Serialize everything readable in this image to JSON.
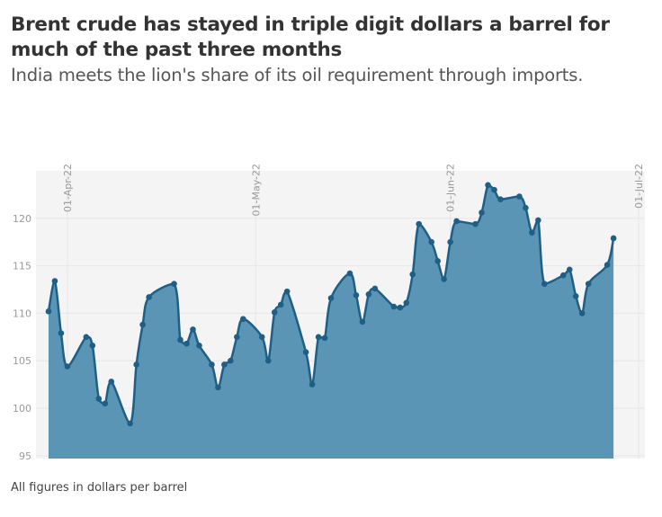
{
  "title": "Brent crude has stayed in triple digit dollars a barrel for much of the past three months",
  "subtitle": "India meets the lion's share of its oil requirement through imports.",
  "footer": "All figures in dollars per barrel",
  "colors": {
    "line": "#1f5f86",
    "area": "#5b95b6",
    "plot_bg": "#f4f4f4",
    "grid": "#e6e6e6"
  },
  "chart_data": {
    "type": "area",
    "title": "Brent crude has stayed in triple digit dollars a barrel for much of the past three months",
    "xlabel": "",
    "ylabel": "",
    "ylim": [
      94.7,
      125
    ],
    "xlim": [
      "2022-03-27",
      "2022-07-02"
    ],
    "grid": true,
    "x_ticks": [
      {
        "date": "2022-04-01",
        "label": "01-Apr-22"
      },
      {
        "date": "2022-05-01",
        "label": "01-May-22"
      },
      {
        "date": "2022-06-01",
        "label": "01-Jun-22"
      },
      {
        "date": "2022-07-01",
        "label": "01-Jul-22"
      }
    ],
    "y_ticks": [
      95,
      100,
      105,
      110,
      115,
      120
    ],
    "x": [
      "2022-03-29",
      "2022-03-30",
      "2022-03-31",
      "2022-04-01",
      "2022-04-04",
      "2022-04-05",
      "2022-04-06",
      "2022-04-07",
      "2022-04-08",
      "2022-04-11",
      "2022-04-12",
      "2022-04-13",
      "2022-04-14",
      "2022-04-18",
      "2022-04-19",
      "2022-04-20",
      "2022-04-21",
      "2022-04-22",
      "2022-04-24",
      "2022-04-25",
      "2022-04-26",
      "2022-04-27",
      "2022-04-28",
      "2022-04-29",
      "2022-05-02",
      "2022-05-03",
      "2022-05-04",
      "2022-05-05",
      "2022-05-06",
      "2022-05-09",
      "2022-05-10",
      "2022-05-11",
      "2022-05-12",
      "2022-05-13",
      "2022-05-16",
      "2022-05-17",
      "2022-05-18",
      "2022-05-19",
      "2022-05-20",
      "2022-05-23",
      "2022-05-24",
      "2022-05-25",
      "2022-05-26",
      "2022-05-27",
      "2022-05-29",
      "2022-05-30",
      "2022-05-31",
      "2022-06-01",
      "2022-06-02",
      "2022-06-05",
      "2022-06-06",
      "2022-06-07",
      "2022-06-08",
      "2022-06-09",
      "2022-06-12",
      "2022-06-13",
      "2022-06-14",
      "2022-06-15",
      "2022-06-16",
      "2022-06-19",
      "2022-06-20",
      "2022-06-21",
      "2022-06-22",
      "2022-06-23",
      "2022-06-26",
      "2022-06-27"
    ],
    "series": [
      {
        "name": "Brent crude",
        "values": [
          110.2,
          113.4,
          107.9,
          104.4,
          107.5,
          106.6,
          101.0,
          100.5,
          102.8,
          98.4,
          104.6,
          108.8,
          111.7,
          113.1,
          107.2,
          106.8,
          108.3,
          106.6,
          104.6,
          102.2,
          104.6,
          105.0,
          107.5,
          109.4,
          107.5,
          105.0,
          110.1,
          110.9,
          112.3,
          105.9,
          102.5,
          107.5,
          107.4,
          111.6,
          114.2,
          111.9,
          109.1,
          112.0,
          112.6,
          110.7,
          110.6,
          111.1,
          114.1,
          119.4,
          117.5,
          115.5,
          113.6,
          117.5,
          119.7,
          119.4,
          120.6,
          123.5,
          123.0,
          122.0,
          122.3,
          121.1,
          118.5,
          119.8,
          113.1,
          114.0,
          114.6,
          111.8,
          110.0,
          113.1,
          115.1,
          117.9
        ]
      }
    ]
  }
}
